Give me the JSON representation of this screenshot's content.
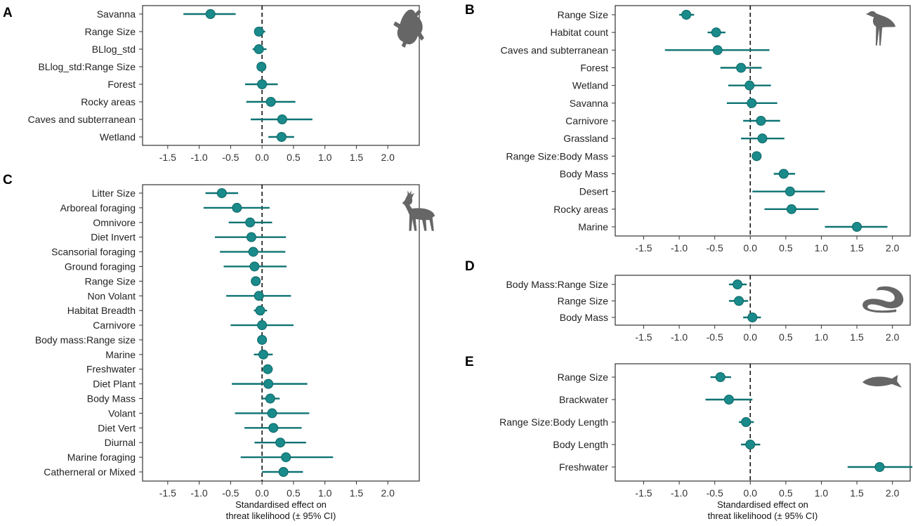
{
  "colors": {
    "point": "#1a8a8a",
    "ci": "#0e7373",
    "frame": "#333333",
    "zero_line": "#111111",
    "silhouette": "#666666"
  },
  "chart_data": [
    {
      "panel": "A",
      "type": "scatter",
      "icon": "frog-silhouette-icon",
      "xlim": [
        -1.9,
        2.5
      ],
      "xticks": [
        -1.5,
        -1.0,
        -0.5,
        0.0,
        0.5,
        1.0,
        1.5,
        2.0
      ],
      "xtick_labels": [
        "-1.5",
        "-1.0",
        "-0.5",
        "0.0",
        "0.5",
        "1.0",
        "1.5",
        "2.0"
      ],
      "xlabel": "",
      "rows": [
        {
          "label": "Savanna",
          "est": -0.82,
          "lo": -1.25,
          "hi": -0.42
        },
        {
          "label": "Range Size",
          "est": -0.05,
          "lo": -0.11,
          "hi": 0.05
        },
        {
          "label": "BLlog_std",
          "est": -0.05,
          "lo": -0.15,
          "hi": 0.07
        },
        {
          "label": "BLlog_std:Range Size",
          "est": -0.01,
          "lo": -0.07,
          "hi": 0.06
        },
        {
          "label": "Forest",
          "est": 0.0,
          "lo": -0.27,
          "hi": 0.25
        },
        {
          "label": "Rocky areas",
          "est": 0.14,
          "lo": -0.25,
          "hi": 0.53
        },
        {
          "label": "Caves and subterranean",
          "est": 0.32,
          "lo": -0.18,
          "hi": 0.8
        },
        {
          "label": "Wetland",
          "est": 0.31,
          "lo": 0.1,
          "hi": 0.51
        }
      ]
    },
    {
      "panel": "B",
      "type": "scatter",
      "icon": "bird-silhouette-icon",
      "xlim": [
        -1.9,
        2.25
      ],
      "xticks": [
        -1.5,
        -1.0,
        -0.5,
        0.0,
        0.5,
        1.0,
        1.5,
        2.0
      ],
      "xtick_labels": [
        "-1.5",
        "-1.0",
        "-0.5",
        "0.0",
        "0.5",
        "1.0",
        "1.5",
        "2.0"
      ],
      "xlabel": "",
      "rows": [
        {
          "label": "Range Size",
          "est": -0.9,
          "lo": -1.0,
          "hi": -0.79
        },
        {
          "label": "Habitat count",
          "est": -0.48,
          "lo": -0.6,
          "hi": -0.35
        },
        {
          "label": "Caves and subterranean",
          "est": -0.46,
          "lo": -1.2,
          "hi": 0.27
        },
        {
          "label": "Forest",
          "est": -0.13,
          "lo": -0.42,
          "hi": 0.16
        },
        {
          "label": "Wetland",
          "est": -0.01,
          "lo": -0.31,
          "hi": 0.29
        },
        {
          "label": "Savanna",
          "est": 0.02,
          "lo": -0.33,
          "hi": 0.38
        },
        {
          "label": "Carnivore",
          "est": 0.15,
          "lo": -0.1,
          "hi": 0.42
        },
        {
          "label": "Grassland",
          "est": 0.17,
          "lo": -0.13,
          "hi": 0.48
        },
        {
          "label": "Range Size:Body Mass",
          "est": 0.09,
          "lo": 0.03,
          "hi": 0.15
        },
        {
          "label": "Body Mass",
          "est": 0.47,
          "lo": 0.33,
          "hi": 0.63
        },
        {
          "label": "Desert",
          "est": 0.56,
          "lo": 0.03,
          "hi": 1.05
        },
        {
          "label": "Rocky areas",
          "est": 0.58,
          "lo": 0.2,
          "hi": 0.96
        },
        {
          "label": "Marine",
          "est": 1.5,
          "lo": 1.05,
          "hi": 1.93
        }
      ]
    },
    {
      "panel": "C",
      "type": "scatter",
      "icon": "deer-silhouette-icon",
      "xlim": [
        -1.9,
        2.5
      ],
      "xticks": [
        -1.5,
        -1.0,
        -0.5,
        0.0,
        0.5,
        1.0,
        1.5,
        2.0
      ],
      "xtick_labels": [
        "-1.5",
        "-1.0",
        "-0.5",
        "0.0",
        "0.5",
        "1.0",
        "1.5",
        "2.0"
      ],
      "xlabel": "Standardised effect on\nthreat likelihood (± 95% CI)",
      "rows": [
        {
          "label": "Litter Size",
          "est": -0.64,
          "lo": -0.9,
          "hi": -0.38
        },
        {
          "label": "Arboreal foraging",
          "est": -0.4,
          "lo": -0.93,
          "hi": 0.12
        },
        {
          "label": "Omnivore",
          "est": -0.19,
          "lo": -0.53,
          "hi": 0.16
        },
        {
          "label": "Diet Invert",
          "est": -0.17,
          "lo": -0.75,
          "hi": 0.38
        },
        {
          "label": "Scansorial foraging",
          "est": -0.14,
          "lo": -0.67,
          "hi": 0.37
        },
        {
          "label": "Ground foraging",
          "est": -0.12,
          "lo": -0.61,
          "hi": 0.39
        },
        {
          "label": "Range Size",
          "est": -0.1,
          "lo": -0.17,
          "hi": -0.03
        },
        {
          "label": "Non Volant",
          "est": -0.05,
          "lo": -0.57,
          "hi": 0.46
        },
        {
          "label": "Habitat Breadth",
          "est": -0.03,
          "lo": -0.13,
          "hi": 0.08
        },
        {
          "label": "Carnivore",
          "est": 0.0,
          "lo": -0.5,
          "hi": 0.5
        },
        {
          "label": "Body mass:Range size",
          "est": 0.0,
          "lo": -0.05,
          "hi": 0.05
        },
        {
          "label": "Marine",
          "est": 0.02,
          "lo": -0.13,
          "hi": 0.17
        },
        {
          "label": "Freshwater",
          "est": 0.09,
          "lo": 0.02,
          "hi": 0.17
        },
        {
          "label": "Diet Plant",
          "est": 0.1,
          "lo": -0.48,
          "hi": 0.72
        },
        {
          "label": "Body Mass",
          "est": 0.13,
          "lo": 0.0,
          "hi": 0.28
        },
        {
          "label": "Volant",
          "est": 0.16,
          "lo": -0.43,
          "hi": 0.75
        },
        {
          "label": "Diet Vert",
          "est": 0.18,
          "lo": -0.28,
          "hi": 0.63
        },
        {
          "label": "Diurnal",
          "est": 0.29,
          "lo": -0.12,
          "hi": 0.7
        },
        {
          "label": "Marine foraging",
          "est": 0.38,
          "lo": -0.34,
          "hi": 1.13
        },
        {
          "label": "Catherneral or Mixed",
          "est": 0.34,
          "lo": 0.0,
          "hi": 0.65
        }
      ]
    },
    {
      "panel": "D",
      "type": "scatter",
      "icon": "snake-silhouette-icon",
      "xlim": [
        -1.9,
        2.25
      ],
      "xticks": [
        -1.5,
        -1.0,
        -0.5,
        0.0,
        0.5,
        1.0,
        1.5,
        2.0
      ],
      "xtick_labels": [
        "-1.5",
        "-1.0",
        "-0.5",
        "0.0",
        "0.5",
        "1.0",
        "1.5",
        "2.0"
      ],
      "xlabel": "",
      "rows": [
        {
          "label": "Body Mass:Range Size",
          "est": -0.18,
          "lo": -0.3,
          "hi": -0.05
        },
        {
          "label": "Range Size",
          "est": -0.16,
          "lo": -0.3,
          "hi": -0.03
        },
        {
          "label": "Body Mass",
          "est": 0.03,
          "lo": -0.1,
          "hi": 0.15
        }
      ]
    },
    {
      "panel": "E",
      "type": "scatter",
      "icon": "fish-silhouette-icon",
      "xlim": [
        -1.9,
        2.25
      ],
      "xticks": [
        -1.5,
        -1.0,
        -0.5,
        0.0,
        0.5,
        1.0,
        1.5,
        2.0
      ],
      "xtick_labels": [
        "-1.5",
        "-1.0",
        "-0.5",
        "0.0",
        "0.5",
        "1.0",
        "1.5",
        "2.0"
      ],
      "xlabel": "Standardised effect on\nthreat likelihood (± 95% CI)",
      "rows": [
        {
          "label": "Range Size",
          "est": -0.42,
          "lo": -0.56,
          "hi": -0.27
        },
        {
          "label": "Brackwater",
          "est": -0.3,
          "lo": -0.63,
          "hi": 0.03
        },
        {
          "label": "Range Size:Body Length",
          "est": -0.06,
          "lo": -0.16,
          "hi": 0.05
        },
        {
          "label": "Body Length",
          "est": 0.0,
          "lo": -0.13,
          "hi": 0.14
        },
        {
          "label": "Freshwater",
          "est": 1.82,
          "lo": 1.37,
          "hi": 2.28
        }
      ]
    }
  ]
}
